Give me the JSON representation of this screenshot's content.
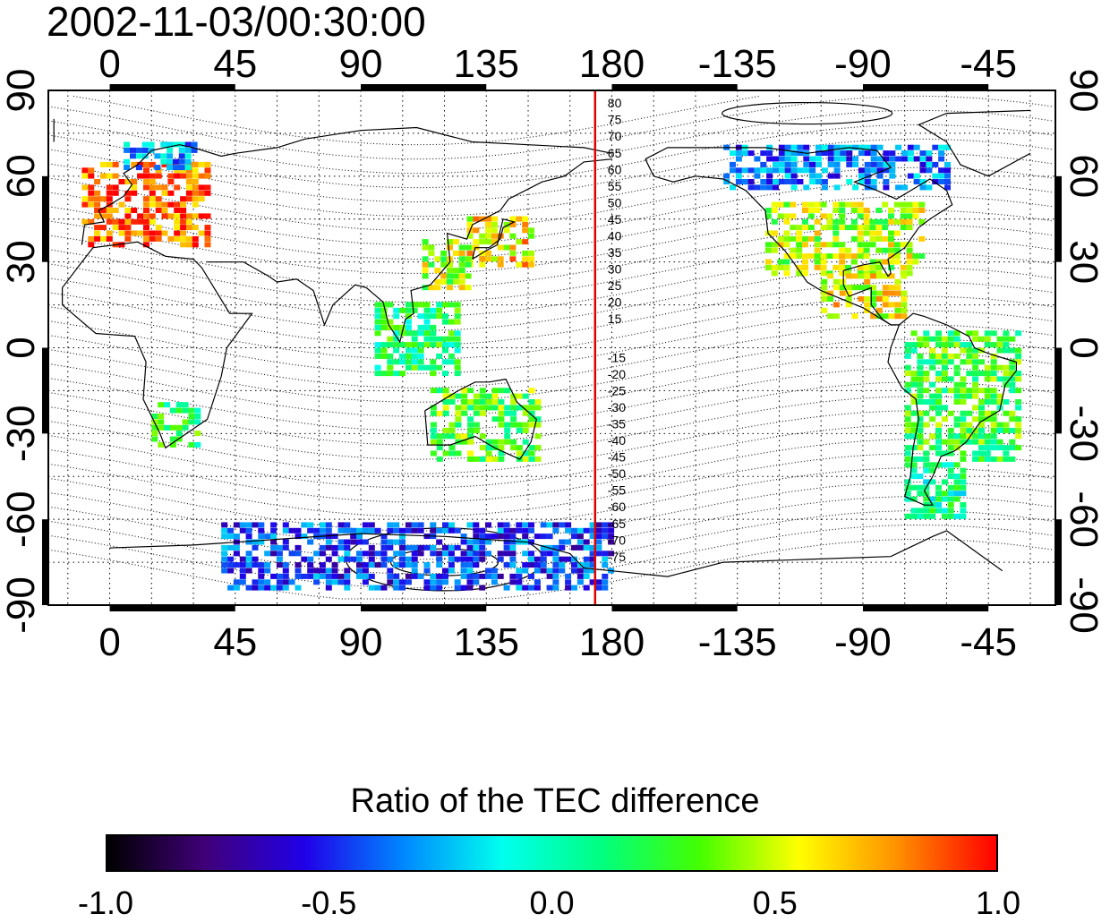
{
  "title": "2002-11-03/00:30:00",
  "map": {
    "projection": "equirectangular",
    "lon_range_deg": [
      -22,
      339
    ],
    "lat_range_deg": [
      -90,
      90
    ],
    "lon_ticks": [
      {
        "lon": 0,
        "label": "0"
      },
      {
        "lon": 45,
        "label": "45"
      },
      {
        "lon": 90,
        "label": "90"
      },
      {
        "lon": 135,
        "label": "135"
      },
      {
        "lon": 180,
        "label": "180"
      },
      {
        "lon": 225,
        "label": "-135"
      },
      {
        "lon": 270,
        "label": "-90"
      },
      {
        "lon": 315,
        "label": "-45"
      }
    ],
    "lat_ticks": [
      {
        "lat": 90,
        "label": "90"
      },
      {
        "lat": 60,
        "label": "60"
      },
      {
        "lat": 30,
        "label": "30"
      },
      {
        "lat": 0,
        "label": "0"
      },
      {
        "lat": -30,
        "label": "-30"
      },
      {
        "lat": -60,
        "label": "-60"
      },
      {
        "lat": -90,
        "label": "-90"
      }
    ],
    "grid_step_deg": 15,
    "grid": "dotted",
    "meridian_marker": {
      "lon": 174,
      "color": "#e00000"
    },
    "contour_labels_north": [
      "80",
      "75",
      "70",
      "65",
      "60",
      "55",
      "50",
      "45",
      "40",
      "35",
      "30",
      "25",
      "20",
      "15"
    ],
    "contour_labels_south": [
      "-15",
      "-20",
      "-25",
      "-30",
      "-35",
      "-40",
      "-45",
      "-50",
      "-55",
      "-60",
      "-65",
      "-70",
      "-75"
    ]
  },
  "colorbar": {
    "title": "Ratio of the TEC difference",
    "min": -1.0,
    "max": 1.0,
    "tick_labels": [
      "-1.0",
      "-0.5",
      "0.0",
      "0.5",
      "1.0"
    ],
    "colors": [
      "#000000",
      "#40007a",
      "#2000e8",
      "#0088ff",
      "#00ffee",
      "#00ff80",
      "#44ff00",
      "#ffff00",
      "#ff9000",
      "#ff0000"
    ]
  },
  "tec_ratio_regions": [
    {
      "name": "Europe",
      "lon": [
        -10,
        35
      ],
      "lat": [
        35,
        65
      ],
      "value": 0.85
    },
    {
      "name": "Scandinavia",
      "lon": [
        5,
        30
      ],
      "lat": [
        62,
        72
      ],
      "value": -0.3
    },
    {
      "name": "Japan",
      "lon": [
        128,
        150
      ],
      "lat": [
        28,
        46
      ],
      "value": 0.62
    },
    {
      "name": "East China",
      "lon": [
        112,
        128
      ],
      "lat": [
        20,
        38
      ],
      "value": 0.45
    },
    {
      "name": "Southeast Asia",
      "lon": [
        95,
        125
      ],
      "lat": [
        -10,
        15
      ],
      "value": 0.15
    },
    {
      "name": "Australia",
      "lon": [
        115,
        153
      ],
      "lat": [
        -40,
        -15
      ],
      "value": 0.3
    },
    {
      "name": "Southern Africa",
      "lon": [
        15,
        32
      ],
      "lat": [
        -35,
        -20
      ],
      "value": 0.2
    },
    {
      "name": "North America",
      "lon": [
        -125,
        -70
      ],
      "lat": [
        25,
        50
      ],
      "value": 0.45
    },
    {
      "name": "Central America",
      "lon": [
        -105,
        -75
      ],
      "lat": [
        10,
        25
      ],
      "value": 0.55
    },
    {
      "name": "Canada",
      "lon": [
        -140,
        -60
      ],
      "lat": [
        55,
        70
      ],
      "value": -0.35
    },
    {
      "name": "South America",
      "lon": [
        -75,
        -35
      ],
      "lat": [
        -40,
        5
      ],
      "value": 0.25
    },
    {
      "name": "Patagonia",
      "lon": [
        -75,
        -55
      ],
      "lat": [
        -60,
        -40
      ],
      "value": 0.05
    },
    {
      "name": "Antarctica",
      "lon": [
        40,
        180
      ],
      "lat": [
        -85,
        -62
      ],
      "value": -0.45
    }
  ]
}
